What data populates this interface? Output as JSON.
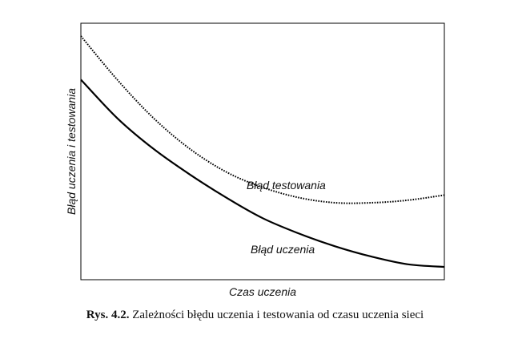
{
  "chart_data": {
    "type": "line",
    "title": "",
    "xlabel": "Czas uczenia",
    "ylabel": "Błąd uczenia i testowania",
    "xlim": [
      0,
      1
    ],
    "ylim": [
      0,
      1
    ],
    "grid": false,
    "legend": "none",
    "series": [
      {
        "name": "Błąd uczenia",
        "style": "solid",
        "color": "#000000",
        "x": [
          0,
          0.1,
          0.2,
          0.3,
          0.4,
          0.5,
          0.6,
          0.7,
          0.8,
          0.9,
          1.0
        ],
        "y": [
          0.78,
          0.63,
          0.51,
          0.41,
          0.32,
          0.24,
          0.18,
          0.13,
          0.09,
          0.06,
          0.05
        ]
      },
      {
        "name": "Błąd testowania",
        "style": "dotted",
        "color": "#000000",
        "x": [
          0,
          0.1,
          0.2,
          0.3,
          0.4,
          0.5,
          0.6,
          0.7,
          0.8,
          0.9,
          1.0
        ],
        "y": [
          0.95,
          0.78,
          0.63,
          0.51,
          0.42,
          0.36,
          0.32,
          0.3,
          0.3,
          0.31,
          0.33
        ]
      }
    ]
  },
  "caption": {
    "number": "Rys. 4.2.",
    "text": "Zależności błędu uczenia i testowania od czasu uczenia sieci"
  }
}
